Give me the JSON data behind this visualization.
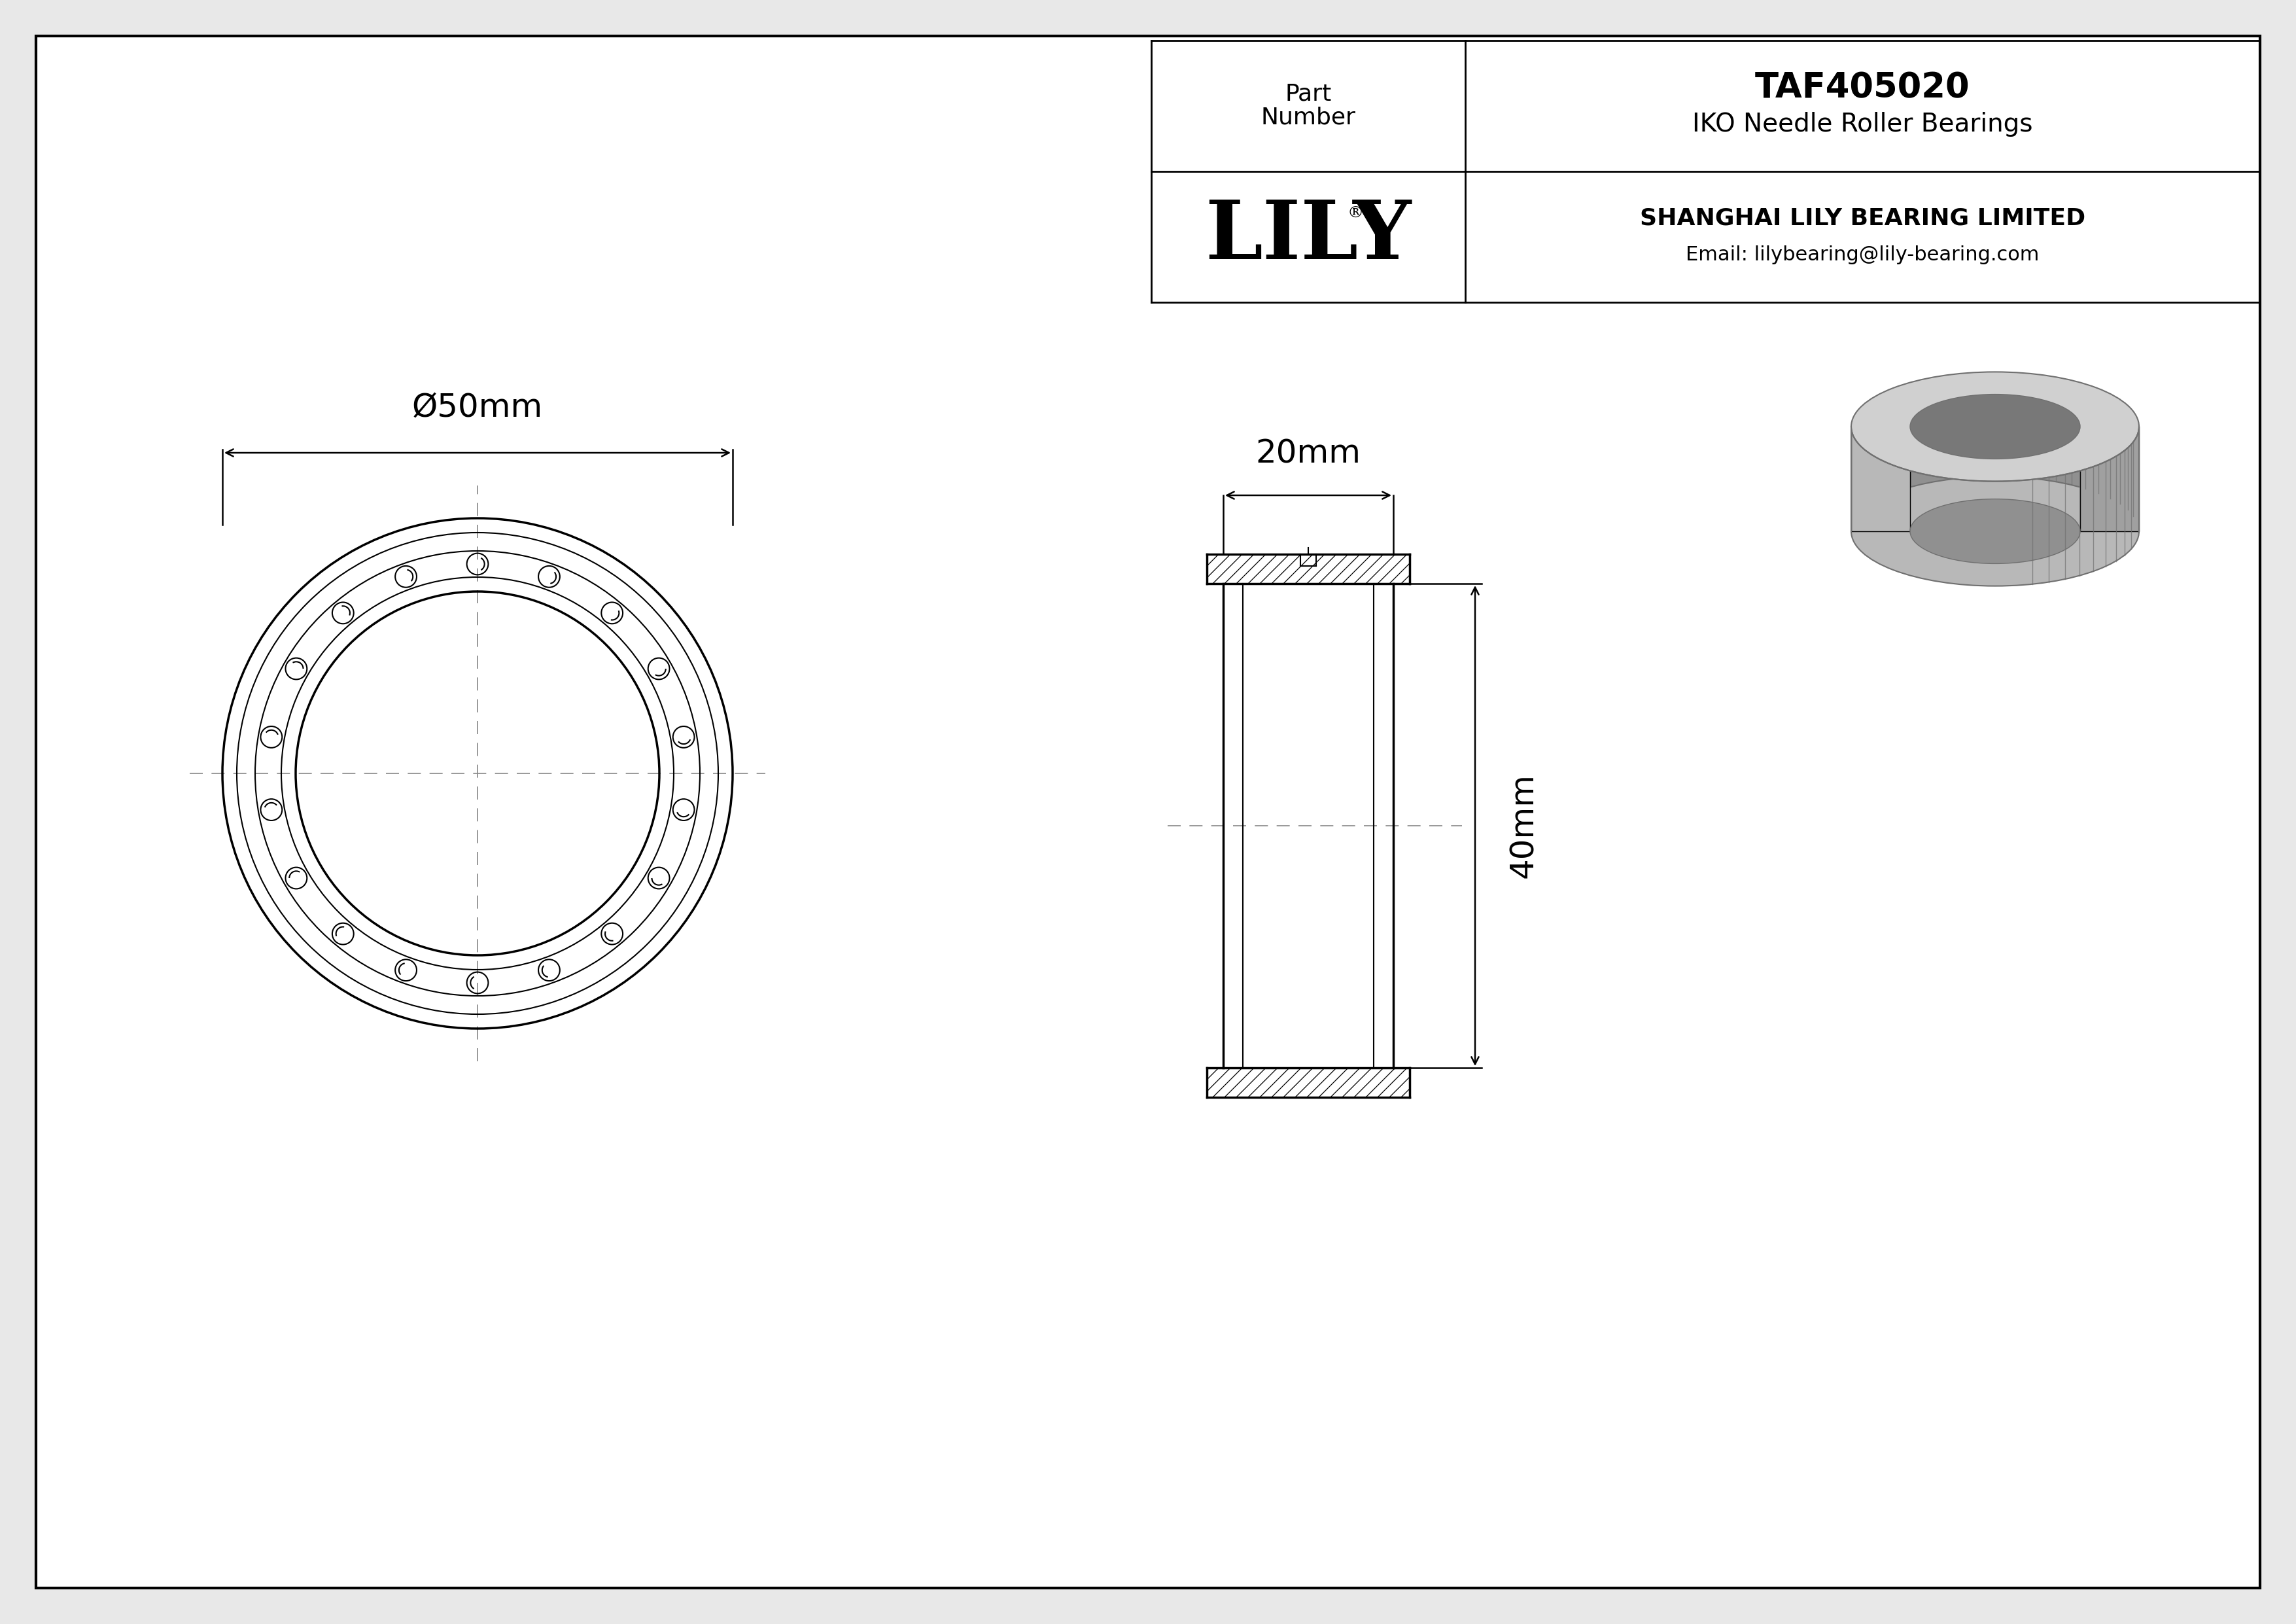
{
  "bg_color": "#e8e8e8",
  "drawing_bg": "#ffffff",
  "line_color": "#000000",
  "cl_color": "#888888",
  "title": "TAF405020",
  "subtitle": "IKO Needle Roller Bearings",
  "company": "SHANGHAI LILY BEARING LIMITED",
  "email": "Email: lilybearing@lily-bearing.com",
  "logo": "LILY",
  "logo_reg": "®",
  "part_label_line1": "Part",
  "part_label_line2": "Number",
  "outer_diameter_label": "Ø50mm",
  "width_label": "20mm",
  "height_label": "40mm",
  "roller_count": 18,
  "font_size_dim": 36,
  "font_size_table_company": 26,
  "font_size_table_email": 22,
  "font_size_logo": 90,
  "font_size_logo_reg": 18,
  "font_size_title": 38,
  "font_size_subtitle": 28,
  "font_size_part_label": 26
}
